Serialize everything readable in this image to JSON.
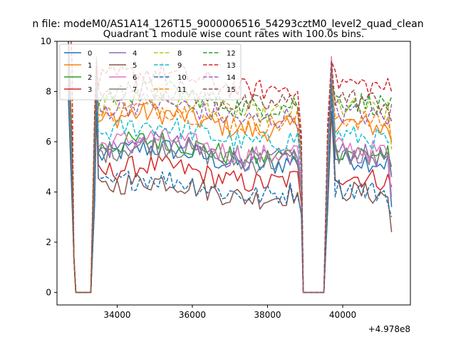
{
  "chart_data": {
    "type": "line",
    "suptitle": "n file: modeM0/AS1A14_126T15_9000006516_54293cztM0_level2_quad_clean",
    "title": "Quadrant 1 module wise count rates with 100.0s bins.",
    "xlabel": "",
    "ylabel": "",
    "x_offset_label": "+4.978e8",
    "xlim": [
      32400,
      41800
    ],
    "ylim": [
      -0.5,
      10
    ],
    "xticks": [
      34000,
      36000,
      38000,
      40000
    ],
    "xtick_labels": [
      "34000",
      "36000",
      "38000",
      "40000"
    ],
    "yticks": [
      0,
      2,
      4,
      6,
      8,
      10
    ],
    "ytick_labels": [
      "0",
      "2",
      "4",
      "6",
      "8",
      "10"
    ],
    "grid": false,
    "legend_location": "top-left",
    "x_segments": [
      {
        "start": 32700,
        "end": 33500,
        "step": 100
      },
      {
        "start": 33500,
        "end": 38900,
        "step": 100
      },
      {
        "start": 38900,
        "end": 41300,
        "step": 100
      }
    ],
    "series": [
      {
        "name": "0",
        "color": "#1f77b4",
        "dashed": false,
        "level": 5.4,
        "spike": 8.2,
        "start": 4.4,
        "end": 3.4
      },
      {
        "name": "1",
        "color": "#ff7f0e",
        "dashed": false,
        "level": 6.8,
        "spike": 8.7,
        "start": 5.5,
        "end": 6.0
      },
      {
        "name": "2",
        "color": "#2ca02c",
        "dashed": false,
        "level": 5.7,
        "spike": 8.4,
        "start": 4.9,
        "end": 4.6
      },
      {
        "name": "3",
        "color": "#d62728",
        "dashed": false,
        "level": 4.7,
        "spike": 8.0,
        "start": 4.0,
        "end": 4.2
      },
      {
        "name": "4",
        "color": "#9467bd",
        "dashed": false,
        "level": 5.6,
        "spike": 7.9,
        "start": 4.7,
        "end": 4.6
      },
      {
        "name": "5",
        "color": "#8c564b",
        "dashed": false,
        "level": 4.1,
        "spike": 7.2,
        "start": 3.6,
        "end": 2.4
      },
      {
        "name": "6",
        "color": "#e377c2",
        "dashed": false,
        "level": 5.8,
        "spike": 9.4,
        "start": 4.8,
        "end": 3.8
      },
      {
        "name": "7",
        "color": "#7f7f7f",
        "dashed": false,
        "level": 5.5,
        "spike": 8.9,
        "start": 4.6,
        "end": 5.0
      },
      {
        "name": "8",
        "color": "#bcbd22",
        "dashed": true,
        "level": 7.4,
        "spike": 8.6,
        "start": 5.8,
        "end": 5.7
      },
      {
        "name": "9",
        "color": "#17becf",
        "dashed": true,
        "level": 6.3,
        "spike": 8.4,
        "start": 5.2,
        "end": 6.0
      },
      {
        "name": "10",
        "color": "#1f77b4",
        "dashed": true,
        "level": 4.2,
        "spike": 8.3,
        "start": 3.8,
        "end": 3.0
      },
      {
        "name": "11",
        "color": "#ff7f0e",
        "dashed": true,
        "level": 7.0,
        "spike": 8.5,
        "start": 5.6,
        "end": 6.0
      },
      {
        "name": "12",
        "color": "#2ca02c",
        "dashed": true,
        "level": 7.7,
        "spike": 8.3,
        "start": 6.1,
        "end": 7.8
      },
      {
        "name": "13",
        "color": "#d62728",
        "dashed": true,
        "level": 8.4,
        "spike": 9.2,
        "start": 9.0,
        "end": 8.0
      },
      {
        "name": "14",
        "color": "#9467bd",
        "dashed": true,
        "level": 7.2,
        "spike": 8.6,
        "start": 5.7,
        "end": 7.5
      },
      {
        "name": "15",
        "color": "#8c564b",
        "dashed": true,
        "level": 7.8,
        "spike": 9.2,
        "start": 5.9,
        "end": 6.8
      }
    ]
  }
}
